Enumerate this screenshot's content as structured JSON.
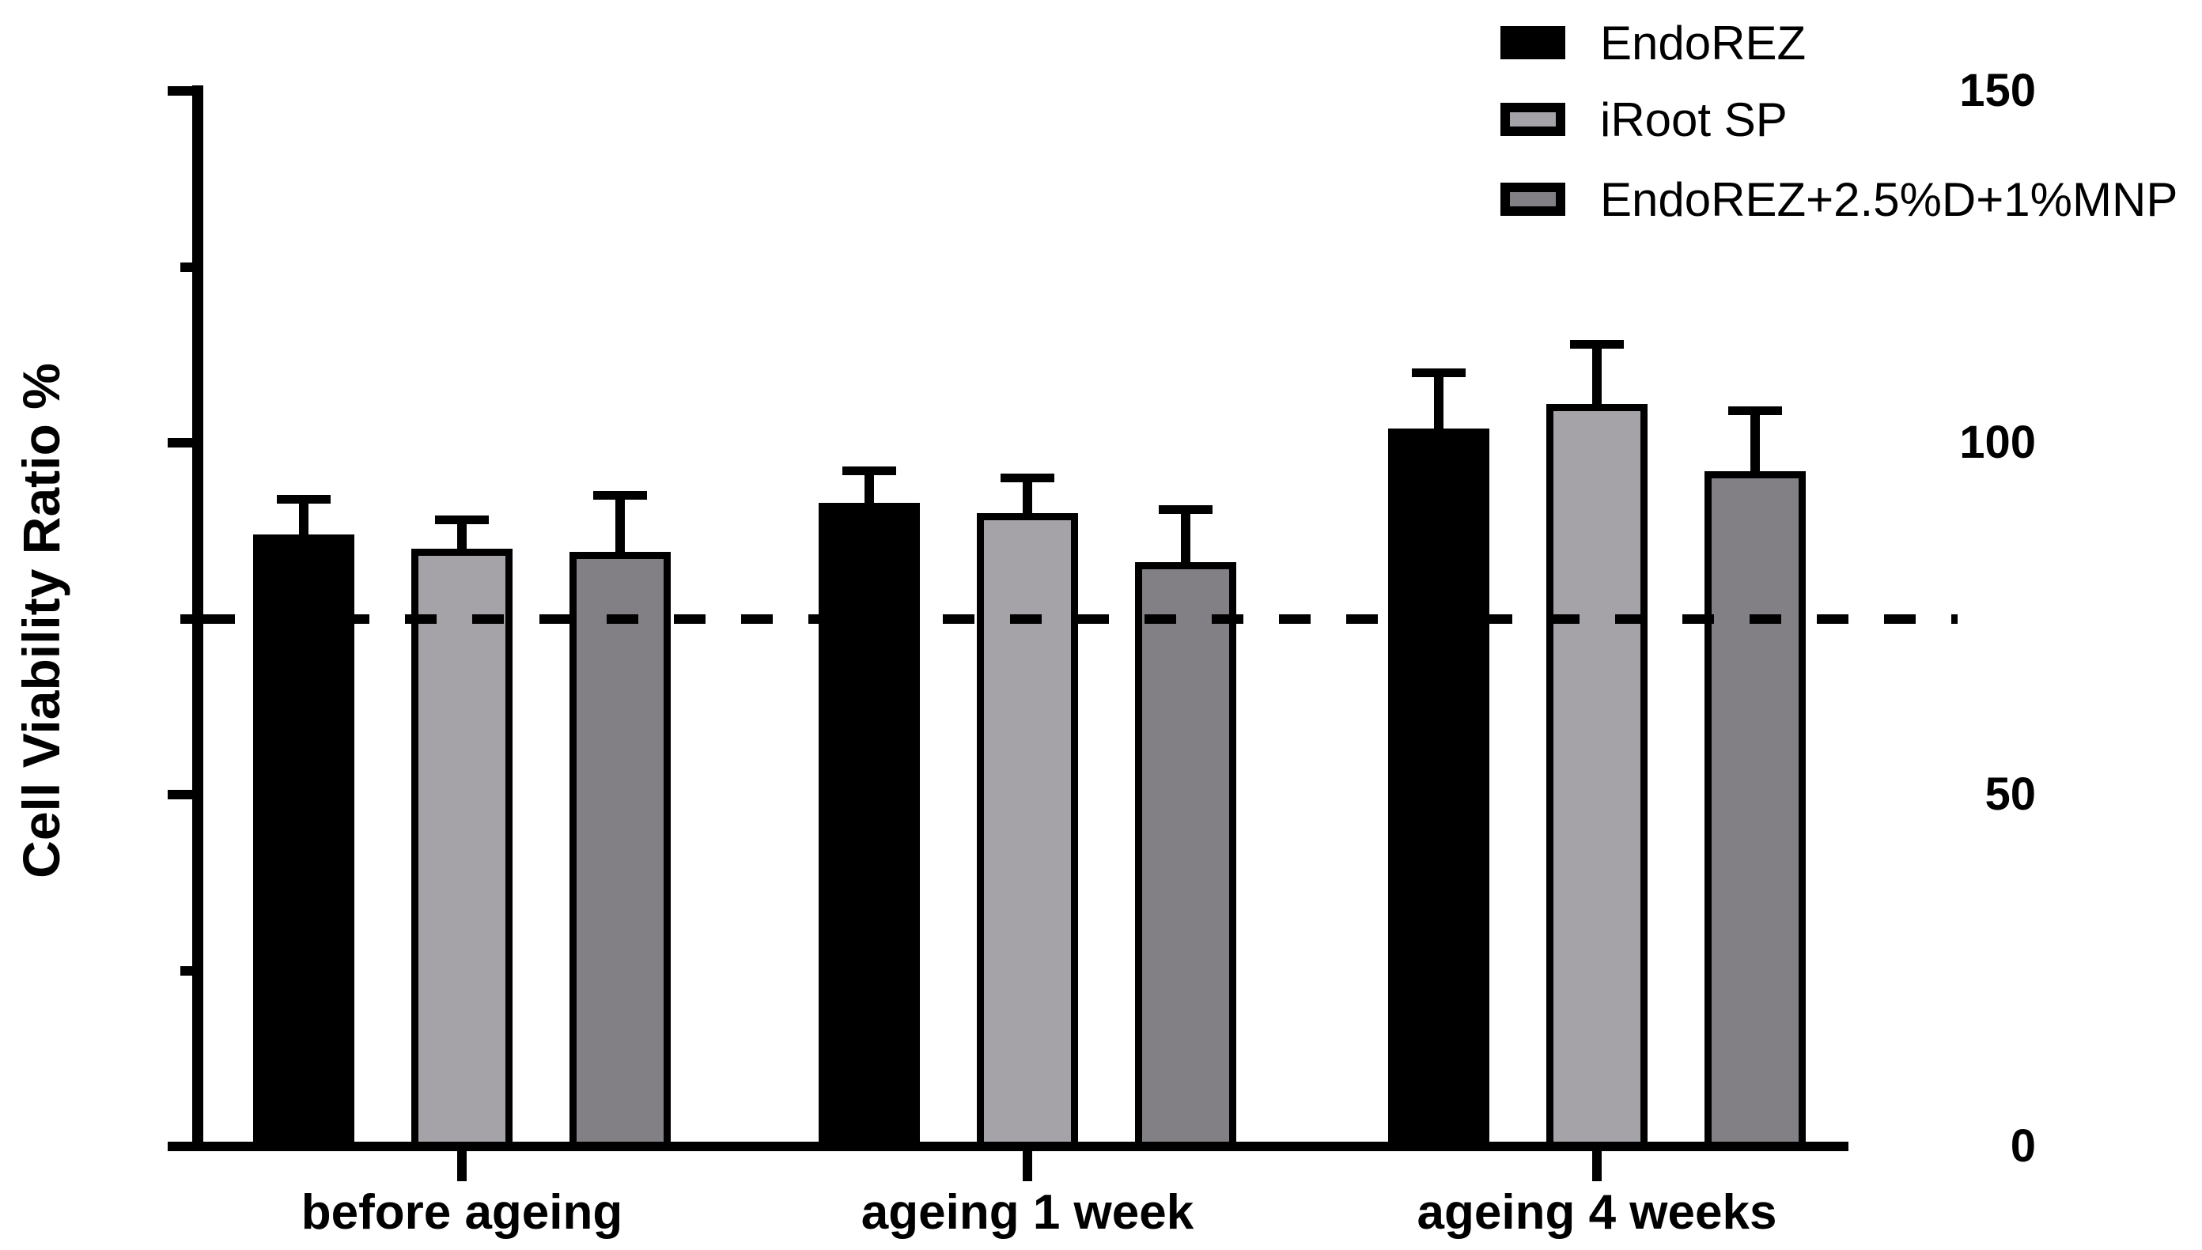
{
  "chart_data": {
    "type": "bar",
    "title": "",
    "ylabel": "Cell Viability Ratio %",
    "xlabel": "",
    "categories": [
      "before ageing",
      "ageing 1 week",
      "ageing 4 weeks"
    ],
    "series": [
      {
        "name": "EndoREZ",
        "fill": "#000000",
        "values": [
          87,
          91.5,
          102
        ],
        "errors": [
          5,
          4.5,
          8
        ]
      },
      {
        "name": "iRoot SP",
        "fill": "#a5a3a8",
        "values": [
          85,
          90,
          105.5
        ],
        "errors": [
          4,
          5,
          8.5
        ]
      },
      {
        "name": "EndoREZ+2.5%D+1%MNP",
        "fill": "#828085",
        "values": [
          84.5,
          83,
          96
        ],
        "errors": [
          8,
          7.5,
          8.5
        ]
      }
    ],
    "error_bar_style": "sd-upper-only",
    "y_axis": {
      "min": 0,
      "max": 150,
      "major_ticks": [
        0,
        50,
        100,
        150
      ],
      "major_tick_labels": [
        "0",
        "50",
        "100",
        "150"
      ],
      "minor_ticks": [
        25,
        75,
        125
      ]
    },
    "reference_line": {
      "value": 75,
      "style": "dashed",
      "color": "#000000"
    },
    "legend_position": "top-right",
    "grid": false,
    "bar_outline_color": "#000000",
    "background_color": "#ffffff"
  }
}
